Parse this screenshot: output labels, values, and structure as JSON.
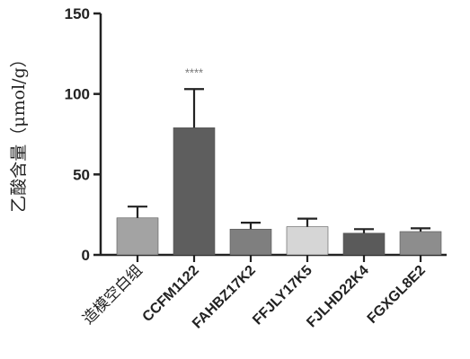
{
  "chart_data": {
    "type": "bar",
    "ylabel": "乙酸含量（μmol/g）",
    "ylim": [
      0,
      150
    ],
    "yticks": [
      0,
      50,
      100,
      150
    ],
    "categories": [
      "造模空白组",
      "CCFM1122",
      "FAHBZ17K2",
      "FFJLY17K5",
      "FJLHD22K4",
      "FGXGL8E2"
    ],
    "values": [
      23,
      79,
      16,
      17.5,
      13.5,
      14.5
    ],
    "errors": [
      7,
      24,
      4,
      5,
      2.5,
      2
    ],
    "bar_colors": [
      "#a3a3a3",
      "#5e5e5e",
      "#7f7f7f",
      "#d6d6d6",
      "#5a5a5a",
      "#8d8d8d"
    ],
    "annotations": [
      {
        "category_index": 1,
        "text": "****"
      }
    ],
    "grid": false,
    "legend": "none"
  }
}
